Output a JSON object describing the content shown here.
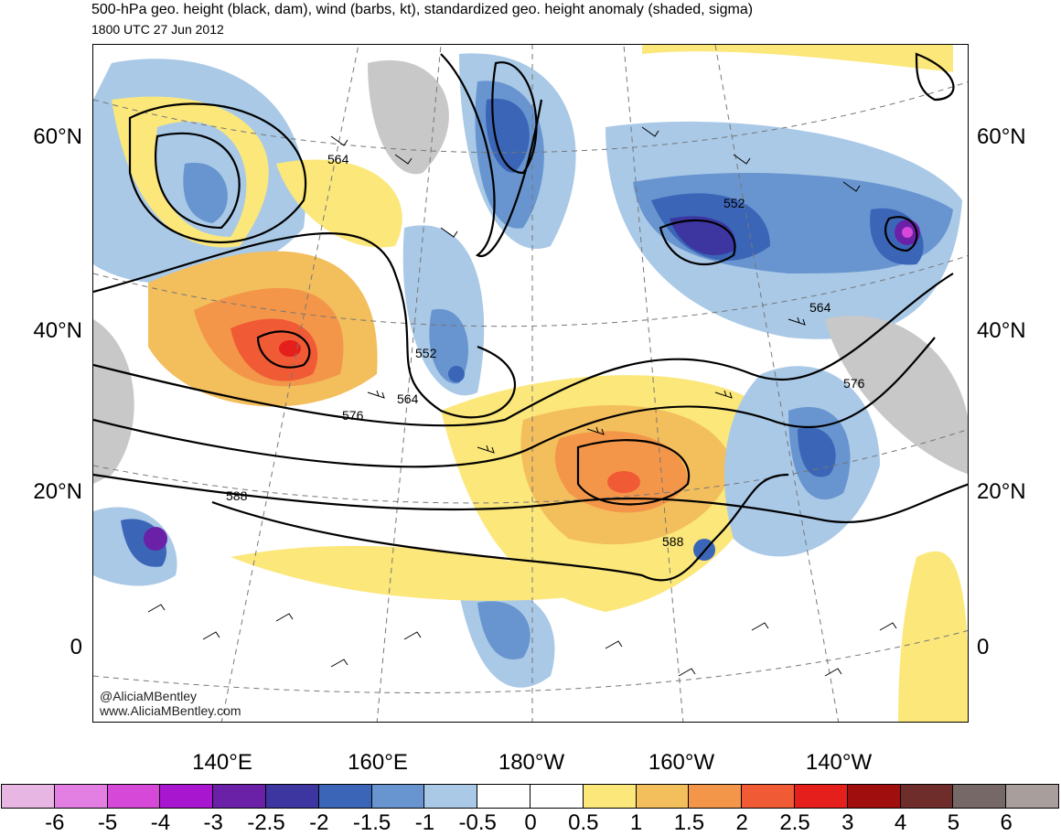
{
  "header": {
    "title": "500-hPa geo. height (black, dam), wind (barbs, kt), standardized geo. height anomaly (shaded, sigma)",
    "valid_time": "1800 UTC 27 Jun 2012"
  },
  "lat_labels": [
    "60°N",
    "40°N",
    "20°N",
    "0"
  ],
  "lon_labels": [
    "140°E",
    "160°E",
    "180°W",
    "160°W",
    "140°W"
  ],
  "contour_labels": [
    "564",
    "552",
    "552",
    "564",
    "576",
    "564",
    "576",
    "588",
    "588"
  ],
  "credits": [
    "@AliciaMBentley",
    "www.AliciaMBentley.com"
  ],
  "colorbar": {
    "colors": [
      "#e8b6e3",
      "#e37fe3",
      "#d649d8",
      "#a916cf",
      "#6a21a8",
      "#3d35a0",
      "#3b66b8",
      "#6895cf",
      "#a9c9e7",
      "#ffffff",
      "#ffffff",
      "#fbe77a",
      "#f3be5c",
      "#f39649",
      "#f05a35",
      "#e41f1c",
      "#a00f0e",
      "#6e2d2a",
      "#756866",
      "#a89e9b"
    ],
    "labels": [
      "-6",
      "-5",
      "-4",
      "-3",
      "-2.5",
      "-2",
      "-1.5",
      "-1",
      "-0.5",
      "0",
      "0.5",
      "1",
      "1.5",
      "2",
      "2.5",
      "3",
      "4",
      "5",
      "6"
    ]
  }
}
